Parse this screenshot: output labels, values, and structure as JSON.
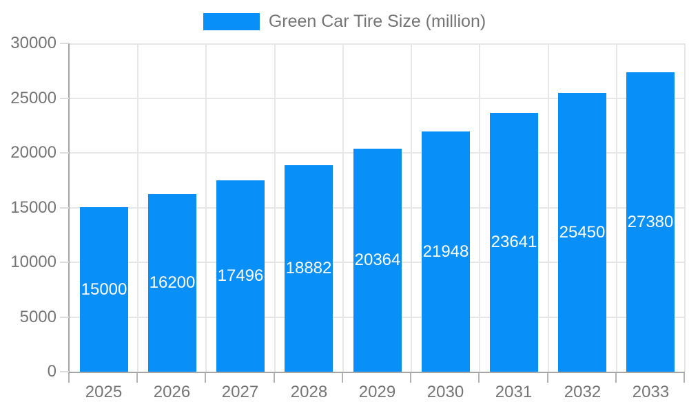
{
  "chart_data": {
    "type": "bar",
    "title": "Green Car Tire Size (million)",
    "categories": [
      "2025",
      "2026",
      "2027",
      "2028",
      "2029",
      "2030",
      "2031",
      "2032",
      "2033"
    ],
    "values": [
      15000,
      16200,
      17496,
      18882,
      20364,
      21948,
      23641,
      25450,
      27380
    ],
    "xlabel": "",
    "ylabel": "",
    "ylim": [
      0,
      30000
    ],
    "y_ticks": [
      0,
      5000,
      10000,
      15000,
      20000,
      25000,
      30000
    ],
    "grid": true,
    "legend_position": "top-center",
    "bar_value_labels_inside": true
  },
  "colors": {
    "bar": "#0890f8",
    "legend_text": "#757575",
    "tick_text": "#757575",
    "axis_line": "#a6a6a6",
    "gridline": "#e7e7e7",
    "bar_label_text": "#ffffff",
    "background": "#ffffff"
  }
}
